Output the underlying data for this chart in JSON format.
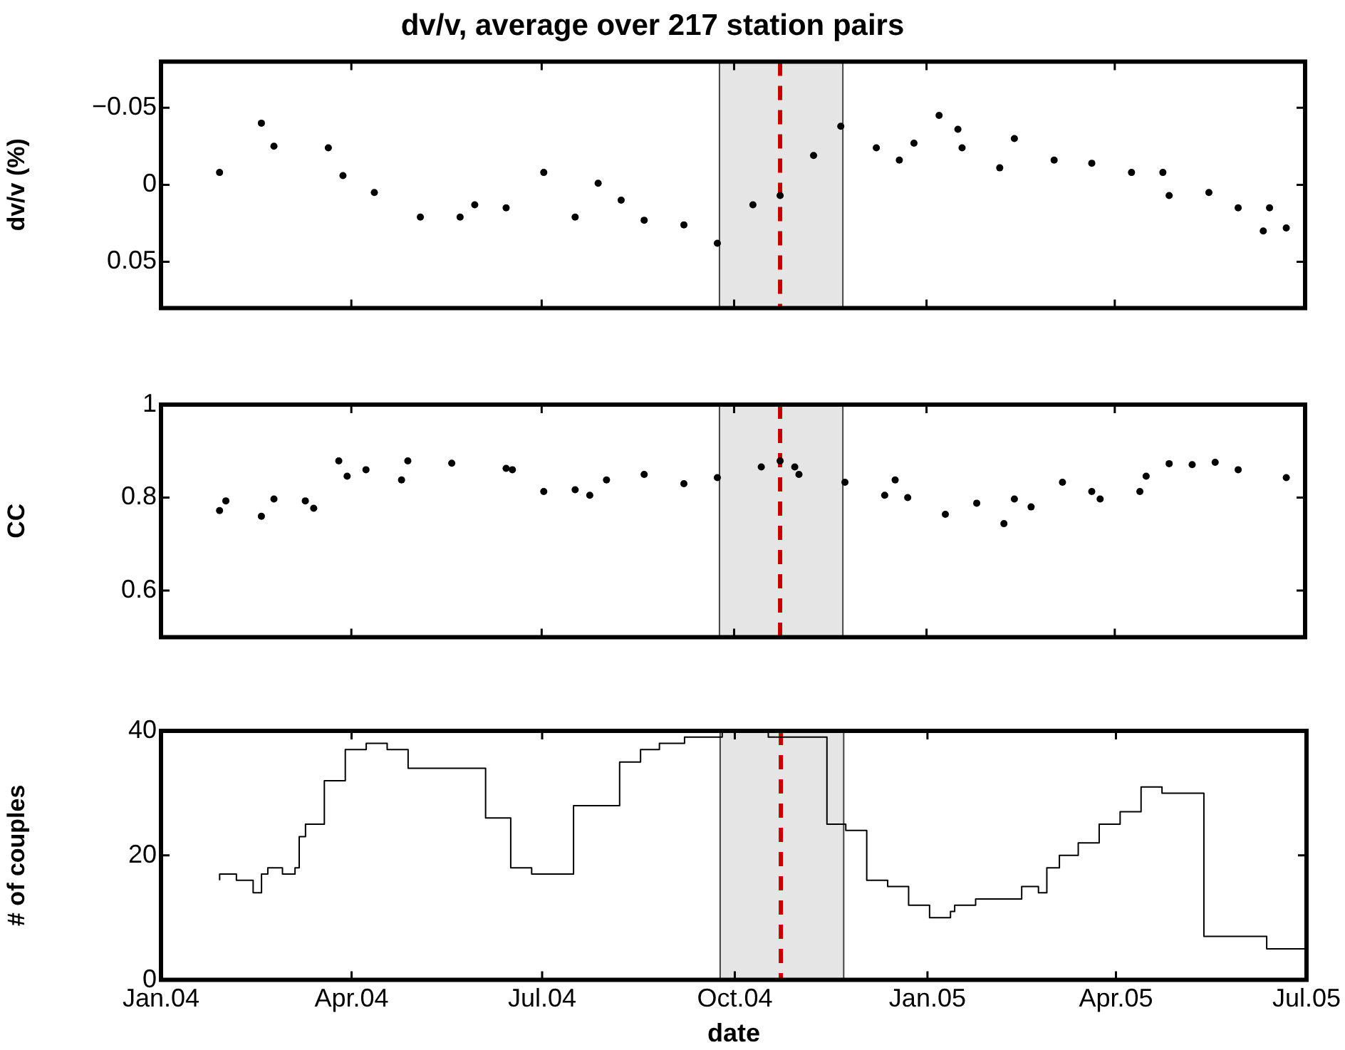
{
  "chart_data": [
    {
      "type": "scatter",
      "title": "dv/v, average over 217 station pairs",
      "ylabel": "dv/v (%)",
      "color": "#000000",
      "marker": "circle",
      "tick_labels": "y",
      "x": [
        "2004-01-29",
        "2004-02-18",
        "2004-02-24",
        "2004-03-21",
        "2004-03-28",
        "2004-04-12",
        "2004-05-04",
        "2004-05-23",
        "2004-05-30",
        "2004-06-14",
        "2004-07-02",
        "2004-07-17",
        "2004-07-28",
        "2004-08-08",
        "2004-08-19",
        "2004-09-07",
        "2004-09-23",
        "2004-10-10",
        "2004-10-23",
        "2004-11-08",
        "2004-11-21",
        "2004-12-08",
        "2004-12-19",
        "2004-12-26",
        "2005-01-07",
        "2005-01-16",
        "2005-01-18",
        "2005-02-05",
        "2005-02-12",
        "2005-03-03",
        "2005-03-21",
        "2005-04-09",
        "2005-04-24",
        "2005-04-27",
        "2005-05-16",
        "2005-05-30",
        "2005-06-11",
        "2005-06-14",
        "2005-06-22"
      ],
      "values": [
        -0.008,
        -0.04,
        -0.025,
        -0.024,
        -0.006,
        0.005,
        0.021,
        0.021,
        0.013,
        0.015,
        -0.008,
        0.021,
        -0.001,
        0.01,
        0.023,
        0.026,
        0.038,
        0.013,
        0.007,
        -0.019,
        -0.038,
        -0.024,
        -0.016,
        -0.027,
        -0.045,
        -0.036,
        -0.024,
        -0.011,
        -0.03,
        -0.016,
        -0.014,
        -0.008,
        -0.008,
        0.007,
        0.005,
        0.015,
        0.03,
        0.015,
        0.028
      ],
      "xlim": [
        "2004-01-01",
        "2005-07-01"
      ],
      "xticks": [
        {
          "value": "2004-01-01",
          "label": null
        },
        {
          "value": "2004-04-01",
          "label": null
        },
        {
          "value": "2004-07-01",
          "label": null
        },
        {
          "value": "2004-10-01",
          "label": null
        },
        {
          "value": "2005-01-01",
          "label": null
        },
        {
          "value": "2005-04-01",
          "label": null
        },
        {
          "value": "2005-07-01",
          "label": null
        }
      ],
      "ylim": [
        0.08,
        -0.08
      ],
      "yticks": [
        {
          "value": -0.05,
          "label": "−0.05"
        },
        0,
        0.05
      ],
      "bands": [
        {
          "axis": "x",
          "from": "2004-09-24",
          "to": "2004-11-22",
          "color": "#e5e5e5"
        }
      ],
      "ref_lines": [
        {
          "axis": "x",
          "value": "2004-10-23",
          "color": "#c00000",
          "line_style": "dashed"
        }
      ]
    },
    {
      "type": "scatter",
      "ylabel": "CC",
      "color": "#000000",
      "marker": "circle",
      "tick_labels": "y",
      "x": [
        "2004-01-29",
        "2004-02-01",
        "2004-02-18",
        "2004-02-24",
        "2004-03-10",
        "2004-03-14",
        "2004-03-26",
        "2004-03-30",
        "2004-04-08",
        "2004-04-25",
        "2004-04-28",
        "2004-05-19",
        "2004-06-14",
        "2004-06-17",
        "2004-07-02",
        "2004-07-17",
        "2004-07-24",
        "2004-08-01",
        "2004-08-19",
        "2004-09-07",
        "2004-09-23",
        "2004-10-14",
        "2004-10-23",
        "2004-10-30",
        "2004-11-01",
        "2004-11-23",
        "2004-12-12",
        "2004-12-17",
        "2004-12-23",
        "2005-01-10",
        "2005-01-25",
        "2005-02-07",
        "2005-02-12",
        "2005-02-20",
        "2005-03-07",
        "2005-03-21",
        "2005-03-25",
        "2005-04-13",
        "2005-04-16",
        "2005-04-27",
        "2005-05-08",
        "2005-05-19",
        "2005-05-30",
        "2005-06-22"
      ],
      "values": [
        0.772,
        0.793,
        0.76,
        0.797,
        0.793,
        0.777,
        0.879,
        0.846,
        0.86,
        0.838,
        0.879,
        0.874,
        0.863,
        0.86,
        0.813,
        0.817,
        0.805,
        0.838,
        0.85,
        0.83,
        0.843,
        0.866,
        0.879,
        0.866,
        0.85,
        0.833,
        0.805,
        0.838,
        0.8,
        0.764,
        0.788,
        0.744,
        0.797,
        0.78,
        0.833,
        0.813,
        0.797,
        0.813,
        0.846,
        0.873,
        0.871,
        0.876,
        0.86,
        0.843
      ],
      "xlim": [
        "2004-01-01",
        "2005-07-01"
      ],
      "xticks": [
        {
          "value": "2004-01-01",
          "label": null
        },
        {
          "value": "2004-04-01",
          "label": null
        },
        {
          "value": "2004-07-01",
          "label": null
        },
        {
          "value": "2004-10-01",
          "label": null
        },
        {
          "value": "2005-01-01",
          "label": null
        },
        {
          "value": "2005-04-01",
          "label": null
        },
        {
          "value": "2005-07-01",
          "label": null
        }
      ],
      "ylim": [
        0.5,
        1
      ],
      "yticks": [
        0.6,
        0.8,
        1
      ],
      "bands": [
        {
          "axis": "x",
          "from": "2004-09-24",
          "to": "2004-11-22",
          "color": "#e5e5e5"
        }
      ],
      "ref_lines": [
        {
          "axis": "x",
          "value": "2004-10-23",
          "color": "#c00000",
          "line_style": "dashed"
        }
      ]
    },
    {
      "type": "step",
      "ylabel": "# of couples",
      "xlabel": "date",
      "color": "#000000",
      "marker": "none",
      "x": [
        "2004-01-29",
        "2004-02-06",
        "2004-02-14",
        "2004-02-18",
        "2004-02-21",
        "2004-02-28",
        "2004-03-05",
        "2004-03-07",
        "2004-03-10",
        "2004-03-19",
        "2004-03-29",
        "2004-04-08",
        "2004-04-18",
        "2004-04-28",
        "2004-06-04",
        "2004-06-16",
        "2004-06-26",
        "2004-07-16",
        "2004-08-07",
        "2004-08-17",
        "2004-08-26",
        "2004-09-07",
        "2004-09-25",
        "2004-10-17",
        "2004-11-14",
        "2004-11-23",
        "2004-12-03",
        "2004-12-13",
        "2004-12-23",
        "2005-01-02",
        "2005-01-12",
        "2005-01-14",
        "2005-01-24",
        "2005-02-15",
        "2005-02-23",
        "2005-02-27",
        "2005-03-05",
        "2005-03-14",
        "2005-03-24",
        "2005-04-03",
        "2005-04-13",
        "2005-04-23",
        "2005-05-13",
        "2005-06-12",
        "2005-06-21",
        "2005-07-01"
      ],
      "values": [
        16,
        17,
        16,
        14,
        17,
        18,
        17,
        18,
        23,
        25,
        32,
        37,
        38,
        37,
        34,
        26,
        18,
        17,
        28,
        35,
        37,
        38,
        39,
        40,
        39,
        25,
        24,
        16,
        15,
        12,
        10,
        11,
        12,
        13,
        15,
        14,
        18,
        20,
        22,
        25,
        27,
        31,
        30,
        7,
        5,
        5
      ],
      "xlim": [
        "2004-01-01",
        "2005-07-01"
      ],
      "xticks": [
        {
          "value": "2004-01-01",
          "label": "Jan.04"
        },
        {
          "value": "2004-04-01",
          "label": "Apr.04"
        },
        {
          "value": "2004-07-01",
          "label": "Jul.04"
        },
        {
          "value": "2004-10-01",
          "label": "Oct.04"
        },
        {
          "value": "2005-01-01",
          "label": "Jan.05"
        },
        {
          "value": "2005-04-01",
          "label": "Apr.05"
        },
        {
          "value": "2005-07-01",
          "label": "Jul.05"
        }
      ],
      "ylim": [
        0,
        40
      ],
      "yticks": [
        0,
        20,
        40
      ],
      "bands": [
        {
          "axis": "x",
          "from": "2004-09-24",
          "to": "2004-11-22",
          "color": "#e5e5e5"
        }
      ],
      "ref_lines": [
        {
          "axis": "x",
          "value": "2004-10-23",
          "color": "#c00000",
          "line_style": "dashed"
        }
      ]
    }
  ]
}
